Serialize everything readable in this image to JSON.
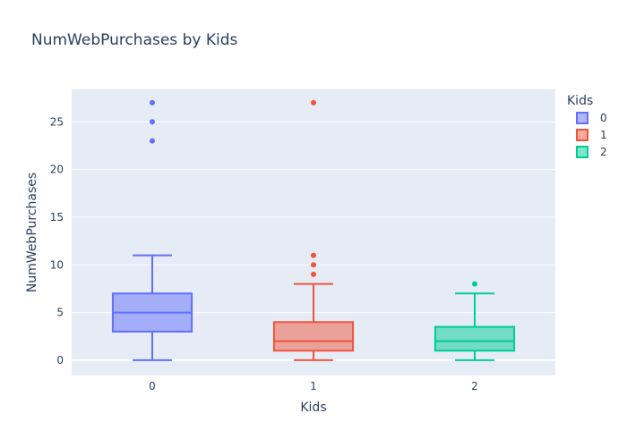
{
  "chart_data": {
    "type": "box",
    "title": "NumWebPurchases by Kids",
    "xlabel": "Kids",
    "ylabel": "NumWebPurchases",
    "ylim": [
      -1.6,
      28.4
    ],
    "yticks": [
      0,
      5,
      10,
      15,
      20,
      25
    ],
    "grid": true,
    "legend": {
      "title": "Kids",
      "position": "top-right"
    },
    "colors": {
      "plot_bg": "#e5ecf6",
      "grid": "#ffffff",
      "text": "#2a3f5f"
    },
    "series": [
      {
        "name": "0",
        "category": "0",
        "color": "#636efa",
        "fill": "rgba(99,110,250,0.5)",
        "min": 0,
        "q1": 3,
        "median": 5,
        "q3": 7,
        "max": 11,
        "outliers": [
          23,
          25,
          27
        ]
      },
      {
        "name": "1",
        "category": "1",
        "color": "#ef553b",
        "fill": "rgba(239,85,59,0.5)",
        "min": 0,
        "q1": 1,
        "median": 2,
        "q3": 4,
        "max": 8,
        "outliers": [
          9,
          10,
          11,
          27
        ]
      },
      {
        "name": "2",
        "category": "2",
        "color": "#00cc96",
        "fill": "rgba(0,204,150,0.5)",
        "min": 0,
        "q1": 1,
        "median": 2,
        "q3": 3.5,
        "max": 7,
        "outliers": [
          8
        ]
      }
    ]
  }
}
